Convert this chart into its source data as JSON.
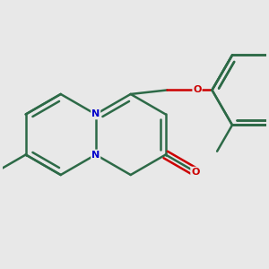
{
  "background_color": "#e8e8e8",
  "bond_color": "#2d6a47",
  "n_color": "#0000cc",
  "o_color": "#cc0000",
  "bond_width": 1.8,
  "figsize": [
    3.0,
    3.0
  ],
  "dpi": 100,
  "xlim": [
    -1.2,
    2.2
  ],
  "ylim": [
    -1.4,
    1.4
  ]
}
